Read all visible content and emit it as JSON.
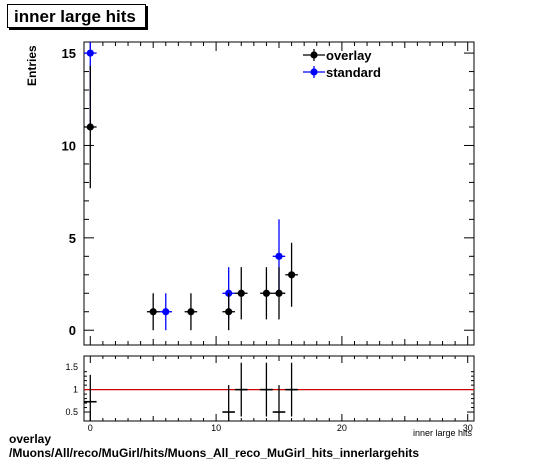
{
  "title": "inner large hits",
  "caption": {
    "line1": "overlay",
    "line2": "/Muons/All/reco/MuGirl/hits/Muons_All_reco_MuGirl_hits_innerlargehits"
  },
  "chart_data": [
    {
      "type": "scatter",
      "panel": "main",
      "ylabel": "Entries",
      "xlabel": "inner large hits",
      "xlim": [
        -0.5,
        30.5
      ],
      "ylim": [
        -0.8,
        15.6
      ],
      "xticks": [
        0,
        10,
        20,
        30
      ],
      "yticks": [
        0,
        5,
        10,
        15
      ],
      "legend_position": "top-right",
      "series": [
        {
          "name": "overlay",
          "color": "#000000",
          "x": [
            0,
            5,
            8,
            11,
            12,
            14,
            15,
            16
          ],
          "y": [
            11,
            1,
            1,
            1,
            2,
            2,
            2,
            3
          ]
        },
        {
          "name": "standard",
          "color": "#0000ff",
          "x": [
            0,
            6,
            11,
            15
          ],
          "y": [
            15,
            1,
            2,
            4
          ]
        }
      ]
    },
    {
      "type": "scatter",
      "panel": "ratio",
      "xlim": [
        -0.5,
        30.5
      ],
      "ylim": [
        0.3,
        1.75
      ],
      "xticks": [
        0,
        10,
        20,
        30
      ],
      "yticks": [
        0.5,
        1,
        1.5
      ],
      "reference_line": 1,
      "reference_color": "#cc0000",
      "x": [
        0,
        11,
        12,
        14,
        15,
        16
      ],
      "y": [
        0.73,
        0.5,
        1.0,
        1.0,
        0.5,
        1.0
      ]
    }
  ]
}
